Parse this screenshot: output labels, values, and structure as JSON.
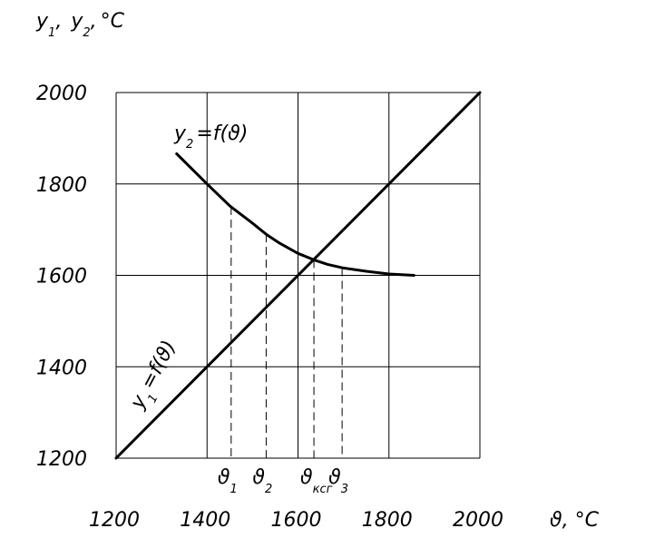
{
  "chart_data": {
    "type": "line",
    "y_axis_title": "y",
    "y_axis_sub1": "1",
    "y_axis_sub2": "2",
    "y_axis_sep": ",",
    "y_axis_unit": "°C",
    "x_axis_title": "ϑ, °C",
    "xlim": [
      1200,
      2000
    ],
    "ylim": [
      1200,
      2000
    ],
    "x_ticks": [
      "1200",
      "1400",
      "1600",
      "1800",
      "2000"
    ],
    "y_ticks": [
      "2000",
      "1800",
      "1600",
      "1400",
      "1200"
    ],
    "grid": true,
    "series": [
      {
        "name": "y1 = f(ϑ)",
        "label_base": "y",
        "label_sub": "1",
        "label_rest": "=f(ϑ)",
        "points": [
          [
            1200,
            1200
          ],
          [
            2000,
            2000
          ]
        ]
      },
      {
        "name": "y2 = f(ϑ)",
        "label_base": "y",
        "label_sub": "2",
        "label_rest": "=f(ϑ)",
        "points": [
          [
            1333,
            1866
          ],
          [
            1400,
            1800
          ],
          [
            1450,
            1752
          ],
          [
            1500,
            1714
          ],
          [
            1530,
            1690
          ],
          [
            1560,
            1670
          ],
          [
            1600,
            1648
          ],
          [
            1635,
            1634
          ],
          [
            1665,
            1624
          ],
          [
            1700,
            1616
          ],
          [
            1750,
            1609
          ],
          [
            1800,
            1603
          ],
          [
            1855,
            1600
          ]
        ]
      }
    ],
    "markers": [
      {
        "base": "ϑ",
        "sub": "1",
        "x": 1453,
        "y": 1750
      },
      {
        "base": "ϑ",
        "sub": "2",
        "x": 1530,
        "y": 1690
      },
      {
        "base": "ϑ",
        "sub": "ксг",
        "x": 1635,
        "y": 1634
      },
      {
        "base": "ϑ",
        "sub": "3",
        "x": 1697,
        "y": 1616
      }
    ]
  }
}
